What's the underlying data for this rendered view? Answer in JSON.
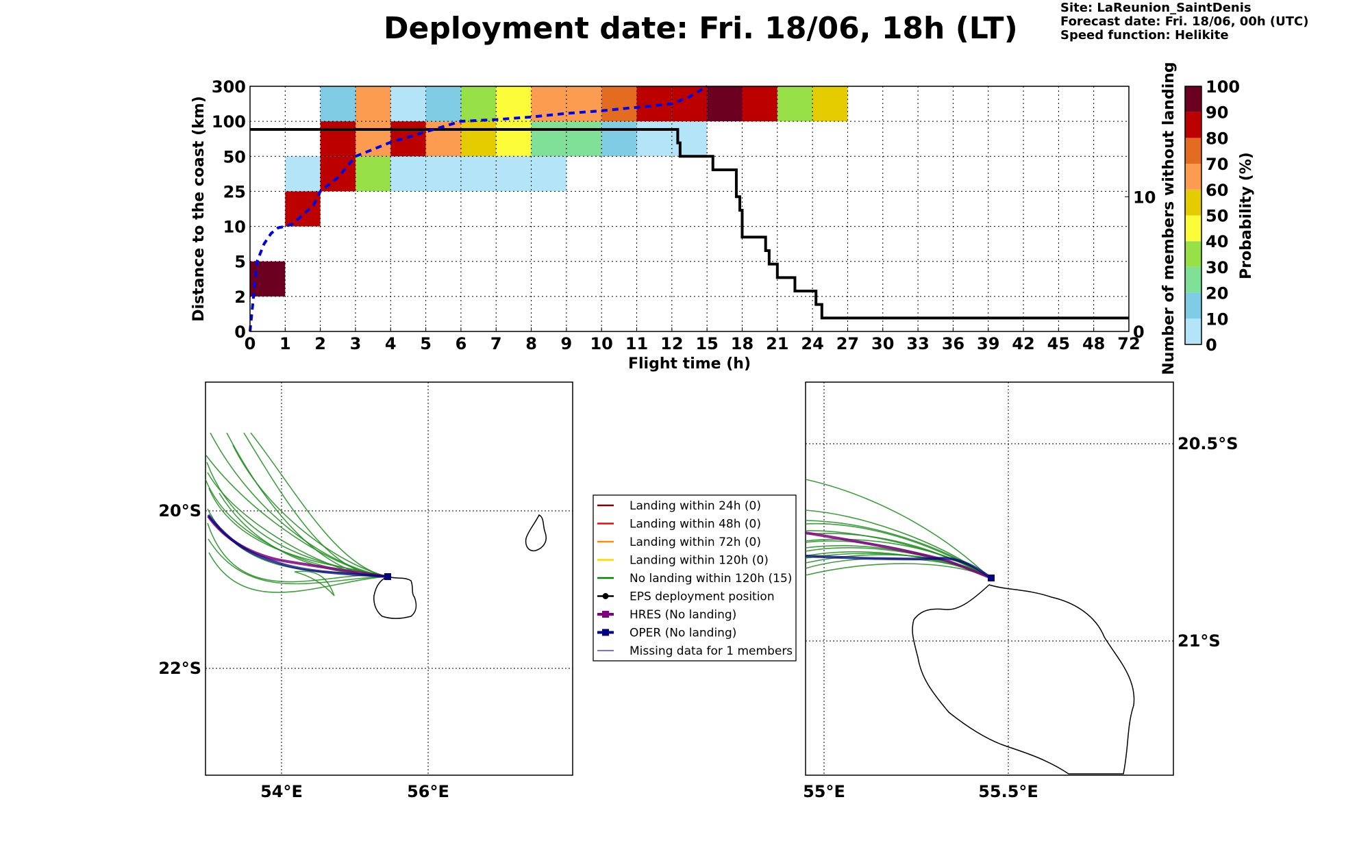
{
  "title": "Deployment date: Fri. 18/06, 18h (LT)",
  "info": {
    "site": "Site: LaReunion_SaintDenis",
    "forecast": "Forecast date: Fri. 18/06, 00h (UTC)",
    "speed": "Speed function: Helikite"
  },
  "colors": {
    "p0": "#b4e4f8",
    "p10": "#80cce4",
    "p20": "#80e098",
    "p30": "#98e048",
    "p40": "#fcfc38",
    "p50": "#e4cc00",
    "p60": "#fc9c50",
    "p70": "#e46c20",
    "p80": "#bc0000",
    "p90": "#6c0020",
    "ens": "#1e8c1e",
    "hres": "#800080",
    "oper": "#000080",
    "median": "#0000e0"
  },
  "chart_data": [
    {
      "type": "heatmap",
      "xlabel": "Flight time (h)",
      "ylabel": "Distance to the coast (km)",
      "y2label": "Number of members without landing",
      "x_ticks": [
        "0",
        "1",
        "2",
        "3",
        "4",
        "5",
        "6",
        "7",
        "8",
        "9",
        "10",
        "11",
        "12",
        "15",
        "18",
        "21",
        "24",
        "27",
        "30",
        "33",
        "36",
        "39",
        "42",
        "45",
        "48",
        "72"
      ],
      "y_ticks": [
        "0",
        "2",
        "5",
        "10",
        "25",
        "50",
        "100",
        "300"
      ],
      "y2_ticks": [
        "0",
        "10"
      ],
      "grid": true,
      "colorbar": {
        "label": "Probability (%)",
        "ticks": [
          "0",
          "10",
          "20",
          "30",
          "40",
          "50",
          "60",
          "70",
          "80",
          "90",
          "100"
        ],
        "levels": [
          "p0",
          "p10",
          "p20",
          "p30",
          "p40",
          "p50",
          "p60",
          "p70",
          "p80",
          "p90"
        ]
      },
      "cells": [
        {
          "x": [
            0,
            1
          ],
          "bin": [
            2,
            5
          ],
          "prob": 95
        },
        {
          "x": [
            1,
            2
          ],
          "bin": [
            10,
            25
          ],
          "prob": 85
        },
        {
          "x": [
            1,
            2
          ],
          "bin": [
            25,
            50
          ],
          "prob": 5
        },
        {
          "x": [
            2,
            3
          ],
          "bin": [
            25,
            50
          ],
          "prob": 85
        },
        {
          "x": [
            2,
            3
          ],
          "bin": [
            50,
            100
          ],
          "prob": 85
        },
        {
          "x": [
            2,
            3
          ],
          "bin": [
            100,
            300
          ],
          "prob": 15
        },
        {
          "x": [
            3,
            4
          ],
          "bin": [
            25,
            50
          ],
          "prob": 35
        },
        {
          "x": [
            3,
            4
          ],
          "bin": [
            50,
            100
          ],
          "prob": 65
        },
        {
          "x": [
            3,
            4
          ],
          "bin": [
            100,
            300
          ],
          "prob": 65
        },
        {
          "x": [
            4,
            5
          ],
          "bin": [
            25,
            50
          ],
          "prob": 5
        },
        {
          "x": [
            4,
            5
          ],
          "bin": [
            50,
            100
          ],
          "prob": 85
        },
        {
          "x": [
            4,
            5
          ],
          "bin": [
            100,
            300
          ],
          "prob": 5
        },
        {
          "x": [
            5,
            6
          ],
          "bin": [
            25,
            50
          ],
          "prob": 5
        },
        {
          "x": [
            5,
            6
          ],
          "bin": [
            50,
            100
          ],
          "prob": 65
        },
        {
          "x": [
            5,
            6
          ],
          "bin": [
            100,
            300
          ],
          "prob": 15
        },
        {
          "x": [
            6,
            7
          ],
          "bin": [
            25,
            50
          ],
          "prob": 5
        },
        {
          "x": [
            6,
            7
          ],
          "bin": [
            50,
            100
          ],
          "prob": 55
        },
        {
          "x": [
            6,
            7
          ],
          "bin": [
            100,
            300
          ],
          "prob": 35
        },
        {
          "x": [
            7,
            8
          ],
          "bin": [
            25,
            50
          ],
          "prob": 5
        },
        {
          "x": [
            7,
            8
          ],
          "bin": [
            50,
            100
          ],
          "prob": 45
        },
        {
          "x": [
            7,
            8
          ],
          "bin": [
            100,
            300
          ],
          "prob": 45
        },
        {
          "x": [
            8,
            9
          ],
          "bin": [
            25,
            50
          ],
          "prob": 5
        },
        {
          "x": [
            8,
            9
          ],
          "bin": [
            50,
            100
          ],
          "prob": 25
        },
        {
          "x": [
            8,
            9
          ],
          "bin": [
            100,
            300
          ],
          "prob": 65
        },
        {
          "x": [
            9,
            10
          ],
          "bin": [
            50,
            100
          ],
          "prob": 25
        },
        {
          "x": [
            9,
            10
          ],
          "bin": [
            100,
            300
          ],
          "prob": 65
        },
        {
          "x": [
            10,
            11
          ],
          "bin": [
            50,
            100
          ],
          "prob": 15
        },
        {
          "x": [
            10,
            11
          ],
          "bin": [
            100,
            300
          ],
          "prob": 75
        },
        {
          "x": [
            11,
            12
          ],
          "bin": [
            50,
            100
          ],
          "prob": 5
        },
        {
          "x": [
            11,
            12
          ],
          "bin": [
            100,
            300
          ],
          "prob": 85
        },
        {
          "x": [
            12,
            15
          ],
          "bin": [
            50,
            100
          ],
          "prob": 5
        },
        {
          "x": [
            12,
            15
          ],
          "bin": [
            100,
            300
          ],
          "prob": 85
        },
        {
          "x": [
            15,
            18
          ],
          "bin": [
            100,
            300
          ],
          "prob": 95
        },
        {
          "x": [
            18,
            21
          ],
          "bin": [
            100,
            300
          ],
          "prob": 85
        },
        {
          "x": [
            21,
            24
          ],
          "bin": [
            100,
            300
          ],
          "prob": 35
        },
        {
          "x": [
            24,
            27
          ],
          "bin": [
            100,
            300
          ],
          "prob": 55
        }
      ],
      "members_without_landing": {
        "x": [
          0,
          12,
          12.5,
          12.7,
          15,
          15.5,
          17.5,
          17.8,
          18,
          20,
          20.3,
          21.0,
          22.5,
          24.3,
          24.8
        ],
        "y": [
          15,
          15,
          14,
          13,
          13,
          12,
          10,
          9,
          7,
          6,
          5,
          4,
          3,
          2,
          1
        ],
        "x_end": 72
      },
      "median_distance": {
        "x": [
          0,
          0.1,
          0.2,
          0.4,
          0.6,
          0.8,
          1.0,
          1.2,
          1.5,
          1.8,
          2.0,
          2.5,
          3.0,
          3.5,
          4.0,
          5.0,
          6.0,
          7.0,
          8.0,
          9.0,
          10.0,
          11.0,
          12.0,
          13.5,
          15.0
        ],
        "y": [
          0,
          2,
          5,
          7.5,
          9,
          9.8,
          10,
          11,
          15,
          19,
          25,
          35,
          50,
          60,
          70,
          85,
          100,
          110,
          125,
          145,
          160,
          180,
          200,
          240,
          300
        ]
      }
    },
    {
      "type": "map",
      "name": "left",
      "lon_ticks": [
        "54°E",
        "56°E"
      ],
      "lat_ticks": [
        "20°S",
        "22°S"
      ],
      "deployment": {
        "lon": 55.46,
        "lat": -20.87
      }
    },
    {
      "type": "map",
      "name": "right",
      "lon_ticks": [
        "55°E",
        "55.5°E"
      ],
      "lat_ticks": [
        "20.5°S",
        "21°S"
      ],
      "deployment": {
        "lon": 55.45,
        "lat": -20.87
      }
    }
  ],
  "legend": [
    {
      "label": "Landing within 24h (0)",
      "color": "#800000",
      "style": "line"
    },
    {
      "label": "Landing within 48h (0)",
      "color": "#ff0000",
      "style": "line"
    },
    {
      "label": "Landing within 72h (0)",
      "color": "#ff8c00",
      "style": "line"
    },
    {
      "label": "Landing within 120h (0)",
      "color": "#ffd700",
      "style": "line"
    },
    {
      "label": "No landing within 120h (15)",
      "color": "#008000",
      "style": "line"
    },
    {
      "label": "EPS deployment position",
      "color": "#000000",
      "style": "dot"
    },
    {
      "label": "HRES (No landing)",
      "color": "#800080",
      "style": "square"
    },
    {
      "label": "OPER (No landing)",
      "color": "#000080",
      "style": "square"
    },
    {
      "label": "Missing data for 1 members",
      "color": "#4040ff",
      "style": "thin"
    }
  ]
}
